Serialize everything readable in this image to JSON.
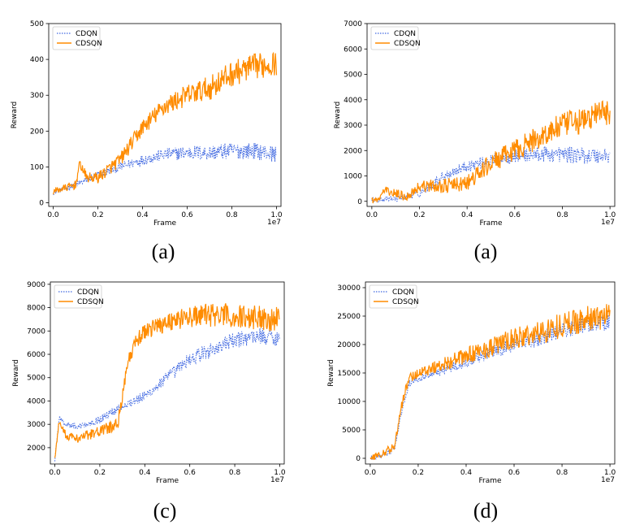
{
  "colors": {
    "cdqn": "#4169e1",
    "cdsqn": "#ff8c00",
    "axis": "#000000"
  },
  "chart_data": [
    {
      "type": "line",
      "caption": "(a)",
      "xlabel": "Frame",
      "ylabel": "Reward",
      "x_offset_label": "1e7",
      "xlim": [
        -0.02,
        1.02
      ],
      "ylim": [
        -10,
        500
      ],
      "xticks": [
        0.0,
        0.2,
        0.4,
        0.6,
        0.8,
        1.0
      ],
      "xtick_labels": [
        "0.0",
        "0.2",
        "0.4",
        "0.6",
        "0.8",
        "1.0"
      ],
      "yticks": [
        0,
        100,
        200,
        300,
        400,
        500
      ],
      "ytick_labels": [
        "0",
        "100",
        "200",
        "300",
        "400",
        "500"
      ],
      "legend": {
        "position": "top-left",
        "entries": [
          "CDQN",
          "CDSQN"
        ]
      },
      "series": [
        {
          "name": "CDQN",
          "style": "dotted",
          "color": "#4169e1",
          "x": [
            0.0,
            0.1,
            0.2,
            0.3,
            0.4,
            0.5,
            0.6,
            0.7,
            0.8,
            0.9,
            1.0
          ],
          "y": [
            28,
            50,
            78,
            100,
            120,
            135,
            140,
            140,
            145,
            145,
            135
          ]
        },
        {
          "name": "CDSQN",
          "style": "solid",
          "color": "#ff8c00",
          "x": [
            0.0,
            0.1,
            0.12,
            0.15,
            0.2,
            0.3,
            0.4,
            0.5,
            0.6,
            0.7,
            0.8,
            0.9,
            1.0
          ],
          "y": [
            32,
            50,
            110,
            70,
            70,
            120,
            210,
            270,
            300,
            320,
            360,
            380,
            390
          ]
        }
      ]
    },
    {
      "type": "line",
      "caption": "(a)",
      "xlabel": "Frame",
      "ylabel": "Reward",
      "x_offset_label": "1e7",
      "xlim": [
        -0.02,
        1.02
      ],
      "ylim": [
        -200,
        7000
      ],
      "xticks": [
        0.0,
        0.2,
        0.4,
        0.6,
        0.8,
        1.0
      ],
      "xtick_labels": [
        "0.0",
        "0.2",
        "0.4",
        "0.6",
        "0.8",
        "1.0"
      ],
      "yticks": [
        0,
        1000,
        2000,
        3000,
        4000,
        5000,
        6000,
        7000
      ],
      "ytick_labels": [
        "0",
        "1000",
        "2000",
        "3000",
        "4000",
        "5000",
        "6000",
        "7000"
      ],
      "legend": {
        "position": "top-left",
        "entries": [
          "CDQN",
          "CDSQN"
        ]
      },
      "series": [
        {
          "name": "CDQN",
          "style": "dotted",
          "color": "#4169e1",
          "x": [
            0.0,
            0.1,
            0.2,
            0.3,
            0.4,
            0.5,
            0.6,
            0.7,
            0.8,
            0.9,
            1.0
          ],
          "y": [
            50,
            100,
            300,
            1000,
            1400,
            1600,
            1800,
            1850,
            1850,
            1800,
            1800
          ]
        },
        {
          "name": "CDSQN",
          "style": "solid",
          "color": "#ff8c00",
          "x": [
            0.0,
            0.03,
            0.05,
            0.1,
            0.15,
            0.2,
            0.3,
            0.4,
            0.5,
            0.6,
            0.7,
            0.8,
            0.9,
            0.95,
            1.0
          ],
          "y": [
            50,
            50,
            450,
            300,
            200,
            600,
            600,
            700,
            1500,
            2000,
            2500,
            3000,
            3200,
            3500,
            3500
          ]
        }
      ]
    },
    {
      "type": "line",
      "caption": "(c)",
      "xlabel": "Frame",
      "ylabel": "Reward",
      "x_offset_label": "1e7",
      "xlim": [
        -0.02,
        1.02
      ],
      "ylim": [
        1300,
        9100
      ],
      "xticks": [
        0.0,
        0.2,
        0.4,
        0.6,
        0.8,
        1.0
      ],
      "xtick_labels": [
        "0.0",
        "0.2",
        "0.4",
        "0.6",
        "0.8",
        "1.0"
      ],
      "yticks": [
        2000,
        3000,
        4000,
        5000,
        6000,
        7000,
        8000,
        9000
      ],
      "ytick_labels": [
        "2000",
        "3000",
        "4000",
        "5000",
        "6000",
        "7000",
        "8000",
        "9000"
      ],
      "legend": {
        "position": "top-left",
        "entries": [
          "CDQN",
          "CDSQN"
        ]
      },
      "series": [
        {
          "name": "CDQN",
          "style": "dotted",
          "color": "#4169e1",
          "x": [
            0.0,
            0.02,
            0.05,
            0.1,
            0.2,
            0.3,
            0.4,
            0.5,
            0.6,
            0.7,
            0.8,
            0.9,
            1.0
          ],
          "y": [
            1500,
            3300,
            3000,
            2900,
            3200,
            3800,
            4200,
            5000,
            5800,
            6200,
            6600,
            6800,
            6700
          ]
        },
        {
          "name": "CDSQN",
          "style": "solid",
          "color": "#ff8c00",
          "x": [
            0.0,
            0.02,
            0.05,
            0.1,
            0.2,
            0.28,
            0.32,
            0.36,
            0.4,
            0.5,
            0.6,
            0.7,
            0.8,
            0.9,
            1.0
          ],
          "y": [
            1500,
            3200,
            2500,
            2400,
            2700,
            3000,
            5500,
            6500,
            7000,
            7400,
            7600,
            7700,
            7600,
            7600,
            7500
          ]
        }
      ]
    },
    {
      "type": "line",
      "caption": "(d)",
      "xlabel": "Frame",
      "ylabel": "Reward",
      "x_offset_label": "1e7",
      "xlim": [
        -0.02,
        1.02
      ],
      "ylim": [
        -1000,
        31000
      ],
      "xticks": [
        0.0,
        0.2,
        0.4,
        0.6,
        0.8,
        1.0
      ],
      "xtick_labels": [
        "0.0",
        "0.2",
        "0.4",
        "0.6",
        "0.8",
        "1.0"
      ],
      "yticks": [
        0,
        5000,
        10000,
        15000,
        20000,
        25000,
        30000
      ],
      "ytick_labels": [
        "0",
        "5000",
        "10000",
        "15000",
        "20000",
        "25000",
        "30000"
      ],
      "legend": {
        "position": "top-left",
        "entries": [
          "CDQN",
          "CDSQN"
        ]
      },
      "series": [
        {
          "name": "CDQN",
          "style": "dotted",
          "color": "#4169e1",
          "x": [
            0.0,
            0.05,
            0.1,
            0.13,
            0.16,
            0.2,
            0.3,
            0.4,
            0.5,
            0.6,
            0.7,
            0.8,
            0.9,
            1.0
          ],
          "y": [
            0,
            500,
            1500,
            8000,
            13000,
            14000,
            15500,
            17000,
            18500,
            20000,
            21000,
            22500,
            23500,
            24000
          ]
        },
        {
          "name": "CDSQN",
          "style": "solid",
          "color": "#ff8c00",
          "x": [
            0.0,
            0.05,
            0.1,
            0.13,
            0.16,
            0.2,
            0.3,
            0.4,
            0.5,
            0.6,
            0.7,
            0.8,
            0.9,
            1.0
          ],
          "y": [
            0,
            800,
            2000,
            9000,
            14000,
            15000,
            16500,
            18000,
            19500,
            21000,
            22000,
            23500,
            24500,
            25000
          ]
        }
      ]
    }
  ]
}
